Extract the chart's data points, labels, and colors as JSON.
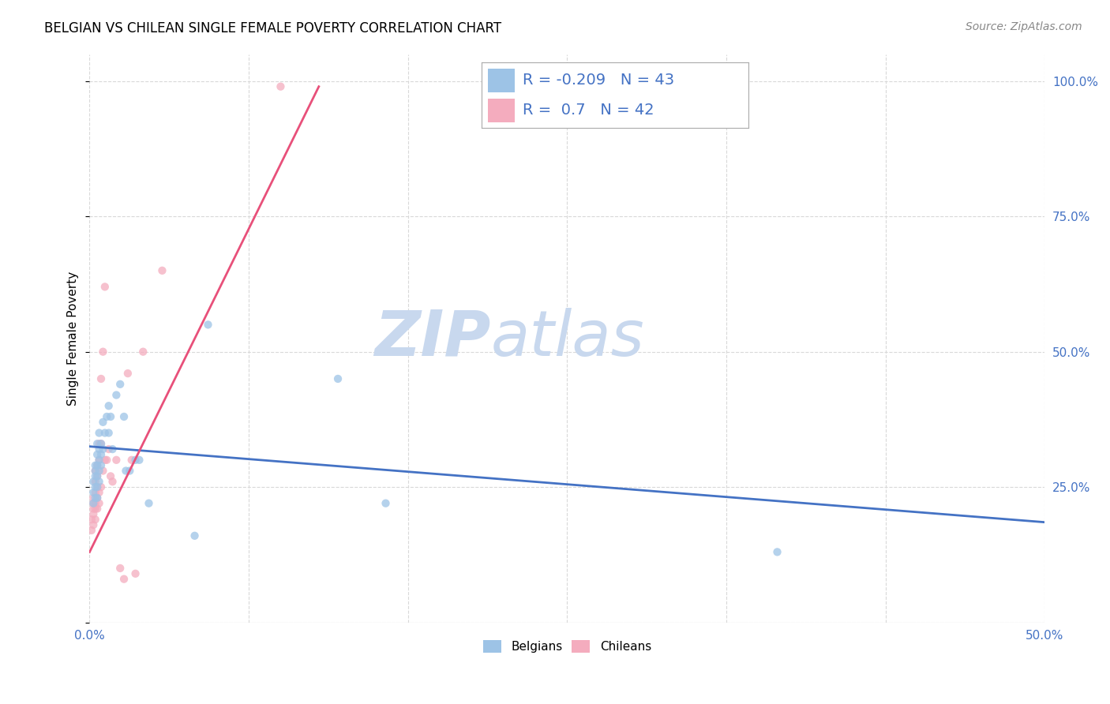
{
  "title": "BELGIAN VS CHILEAN SINGLE FEMALE POVERTY CORRELATION CHART",
  "source": "Source: ZipAtlas.com",
  "ylabel": "Single Female Poverty",
  "xlim": [
    0.0,
    0.5
  ],
  "ylim": [
    0.0,
    1.05
  ],
  "xtick_labels": [
    "0.0%",
    "",
    "",
    "",
    "",
    "",
    "50.0%"
  ],
  "xtick_vals": [
    0.0,
    0.0833,
    0.1667,
    0.25,
    0.3333,
    0.4167,
    0.5
  ],
  "ytick_vals": [
    0.0,
    0.25,
    0.5,
    0.75,
    1.0
  ],
  "ytick_labels_right": [
    "",
    "25.0%",
    "50.0%",
    "75.0%",
    "100.0%"
  ],
  "belgian_color": "#9dc3e6",
  "chilean_color": "#f4acbe",
  "belgian_line_color": "#4472c4",
  "chilean_line_color": "#e8507a",
  "legend_text_color": "#4472c4",
  "watermark_zip_color": "#c8d8ee",
  "watermark_atlas_color": "#c8d8ee",
  "background_color": "#ffffff",
  "grid_color": "#d9d9d9",
  "r_belgian": -0.209,
  "n_belgian": 43,
  "r_chilean": 0.7,
  "n_chilean": 42,
  "belgian_x": [
    0.002,
    0.002,
    0.002,
    0.003,
    0.003,
    0.003,
    0.003,
    0.003,
    0.004,
    0.004,
    0.004,
    0.004,
    0.004,
    0.004,
    0.005,
    0.005,
    0.005,
    0.005,
    0.005,
    0.006,
    0.006,
    0.006,
    0.007,
    0.007,
    0.008,
    0.009,
    0.01,
    0.01,
    0.011,
    0.012,
    0.014,
    0.016,
    0.018,
    0.019,
    0.021,
    0.024,
    0.026,
    0.031,
    0.055,
    0.062,
    0.13,
    0.155,
    0.36
  ],
  "belgian_y": [
    0.22,
    0.24,
    0.26,
    0.23,
    0.25,
    0.27,
    0.28,
    0.29,
    0.23,
    0.25,
    0.27,
    0.29,
    0.31,
    0.33,
    0.26,
    0.28,
    0.3,
    0.32,
    0.35,
    0.29,
    0.31,
    0.33,
    0.32,
    0.37,
    0.35,
    0.38,
    0.35,
    0.4,
    0.38,
    0.32,
    0.42,
    0.44,
    0.38,
    0.28,
    0.28,
    0.3,
    0.3,
    0.22,
    0.16,
    0.55,
    0.45,
    0.22,
    0.13
  ],
  "chilean_x": [
    0.001,
    0.001,
    0.002,
    0.002,
    0.002,
    0.002,
    0.002,
    0.003,
    0.003,
    0.003,
    0.003,
    0.003,
    0.003,
    0.004,
    0.004,
    0.004,
    0.004,
    0.004,
    0.005,
    0.005,
    0.005,
    0.005,
    0.006,
    0.006,
    0.006,
    0.007,
    0.007,
    0.008,
    0.008,
    0.009,
    0.01,
    0.011,
    0.012,
    0.014,
    0.016,
    0.018,
    0.02,
    0.022,
    0.024,
    0.028,
    0.038,
    0.1
  ],
  "chilean_y": [
    0.17,
    0.19,
    0.18,
    0.2,
    0.21,
    0.22,
    0.23,
    0.19,
    0.21,
    0.22,
    0.24,
    0.26,
    0.28,
    0.21,
    0.23,
    0.25,
    0.27,
    0.29,
    0.22,
    0.24,
    0.3,
    0.33,
    0.25,
    0.33,
    0.45,
    0.28,
    0.5,
    0.3,
    0.62,
    0.3,
    0.32,
    0.27,
    0.26,
    0.3,
    0.1,
    0.08,
    0.46,
    0.3,
    0.09,
    0.5,
    0.65,
    0.99
  ],
  "bel_line_x0": 0.0,
  "bel_line_x1": 0.5,
  "bel_line_y0": 0.325,
  "bel_line_y1": 0.185,
  "chi_line_x0": 0.0,
  "chi_line_x1": 0.12,
  "chi_line_y0": 0.13,
  "chi_line_y1": 0.99,
  "title_fontsize": 12,
  "source_fontsize": 10,
  "axis_label_fontsize": 11,
  "tick_fontsize": 11,
  "legend_fontsize": 14,
  "scatter_size": 55,
  "scatter_alpha": 0.75
}
